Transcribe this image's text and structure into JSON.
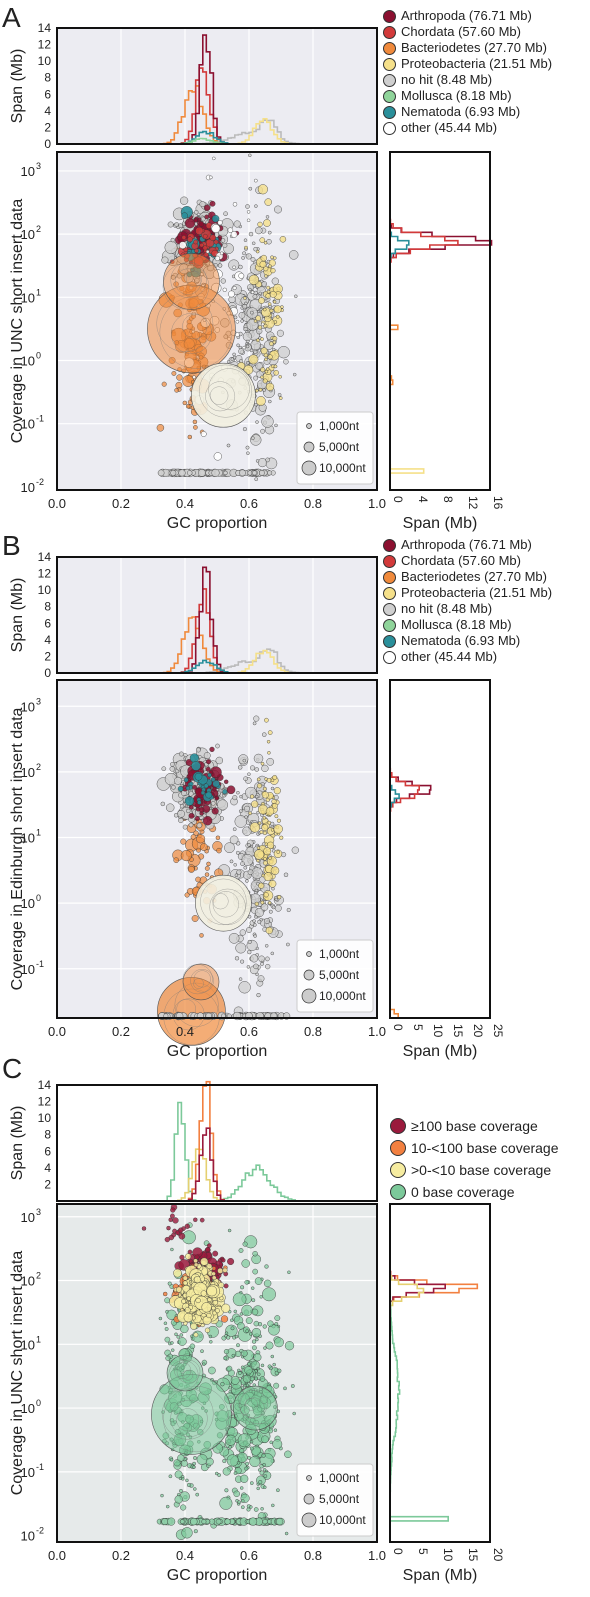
{
  "size_legend": [
    "1,000nt",
    "5,000nt",
    "10,000nt"
  ],
  "colors": {
    "arthropoda": "#8b1030",
    "chordata": "#d23a3a",
    "bacteriodetes": "#f08a3c",
    "proteobacteria": "#f5e08a",
    "nohit": "#cfcfcf",
    "mollusca": "#8fd49a",
    "nematoda": "#2a8f9a",
    "other": "#ffffff",
    "cov100": "#9a1a3c",
    "cov10": "#f28040",
    "cov0to10": "#f6eca0",
    "cov0": "#7cc99a"
  },
  "panels": [
    {
      "letter": "A",
      "top_ylabel": "Span (Mb)",
      "main_ylabel": "Coverage in UNC short insert data",
      "xlabel": "GC proportion",
      "side_xlabel": "Span (Mb)",
      "top_yticks": [
        "0",
        "2",
        "4",
        "6",
        "8",
        "10",
        "12",
        "14"
      ],
      "x_ticks": [
        "0.0",
        "0.2",
        "0.4",
        "0.6",
        "0.8",
        "1.0"
      ],
      "y_ticks": [
        "10-2",
        "10-1",
        "100",
        "101",
        "102",
        "103"
      ],
      "side_ticks": [
        "0",
        "4",
        "8",
        "12",
        "16"
      ],
      "legend": [
        {
          "label": "Arthropoda (76.71 Mb)",
          "color": "#8b1030"
        },
        {
          "label": "Chordata (57.60 Mb)",
          "color": "#d23a3a"
        },
        {
          "label": "Bacteriodetes (27.70 Mb)",
          "color": "#f08a3c"
        },
        {
          "label": "Proteobacteria (21.51 Mb)",
          "color": "#f5e08a"
        },
        {
          "label": "no hit (8.48 Mb)",
          "color": "#cfcfcf"
        },
        {
          "label": "Mollusca (8.18 Mb)",
          "color": "#8fd49a"
        },
        {
          "label": "Nematoda (6.93 Mb)",
          "color": "#2a8f9a"
        },
        {
          "label": "other (45.44 Mb)",
          "color": "#ffffff"
        }
      ]
    },
    {
      "letter": "B",
      "top_ylabel": "Span (Mb)",
      "main_ylabel": "Coverage in Edinburgh short insert data",
      "xlabel": "GC proportion",
      "side_xlabel": "Span (Mb)",
      "top_yticks": [
        "0",
        "2",
        "4",
        "6",
        "8",
        "10",
        "12",
        "14"
      ],
      "x_ticks": [
        "0.0",
        "0.2",
        "0.4",
        "0.6",
        "0.8",
        "1.0"
      ],
      "y_ticks": [
        "10-1",
        "100",
        "101",
        "102",
        "103"
      ],
      "side_ticks": [
        "0",
        "5",
        "10",
        "15",
        "20",
        "25"
      ],
      "legend": [
        {
          "label": "Arthropoda (76.71 Mb)",
          "color": "#8b1030"
        },
        {
          "label": "Chordata (57.60 Mb)",
          "color": "#d23a3a"
        },
        {
          "label": "Bacteriodetes (27.70 Mb)",
          "color": "#f08a3c"
        },
        {
          "label": "Proteobacteria (21.51 Mb)",
          "color": "#f5e08a"
        },
        {
          "label": "no hit (8.48 Mb)",
          "color": "#cfcfcf"
        },
        {
          "label": "Mollusca (8.18 Mb)",
          "color": "#8fd49a"
        },
        {
          "label": "Nematoda (6.93 Mb)",
          "color": "#2a8f9a"
        },
        {
          "label": "other (45.44 Mb)",
          "color": "#ffffff"
        }
      ]
    },
    {
      "letter": "C",
      "top_ylabel": "Span (Mb)",
      "main_ylabel": "Coverage in UNC short insert data",
      "xlabel": "GC proportion",
      "side_xlabel": "Span (Mb)",
      "top_yticks": [
        "2",
        "4",
        "6",
        "8",
        "10",
        "12",
        "14"
      ],
      "x_ticks": [
        "0.0",
        "0.2",
        "0.4",
        "0.6",
        "0.8",
        "1.0"
      ],
      "y_ticks": [
        "10-2",
        "10-1",
        "100",
        "101",
        "102",
        "103"
      ],
      "side_ticks": [
        "0",
        "5",
        "10",
        "15",
        "20"
      ],
      "legend": [
        {
          "label": "≥100 base coverage",
          "color": "#9a1a3c"
        },
        {
          "label": "10-<100 base coverage",
          "color": "#f28040"
        },
        {
          "label": ">0-<10 base coverage",
          "color": "#f6eca0"
        },
        {
          "label": "0 base coverage",
          "color": "#7cc99a"
        }
      ]
    }
  ],
  "chart_data": [
    {
      "type": "scatter",
      "title": "A",
      "xlabel": "GC proportion",
      "ylabel": "Coverage in UNC short insert data",
      "xlim": [
        0.0,
        1.0
      ],
      "ylim": [
        0.01,
        2000
      ],
      "yscale": "log",
      "hist_top_ylabel": "Span (Mb)",
      "hist_top_ylim": [
        0,
        14
      ],
      "hist_side_xlabel": "Span (Mb)",
      "hist_side_xlim": [
        0,
        16
      ],
      "series": [
        {
          "name": "Arthropoda (76.71 Mb)",
          "clusters": [
            {
              "gc": 0.45,
              "cov": 60
            }
          ],
          "hist_peak_gc": 0.46,
          "hist_peak_span": 12.5,
          "hist_side_peak_cov": 70,
          "hist_side_peak_span": 15
        },
        {
          "name": "Chordata (57.60 Mb)",
          "clusters": [
            {
              "gc": 0.44,
              "cov": 60
            }
          ],
          "hist_peak_gc": 0.45,
          "hist_peak_span": 9.5
        },
        {
          "name": "Bacteriodetes (27.70 Mb)",
          "clusters": [
            {
              "gc": 0.4,
              "cov": 1.5
            }
          ],
          "hist_peak_gc": 0.42,
          "hist_peak_span": 7
        },
        {
          "name": "Proteobacteria (21.51 Mb)",
          "clusters": [
            {
              "gc": 0.65,
              "cov": 3
            }
          ],
          "hist_peak_gc": 0.66,
          "hist_peak_span": 2.8
        },
        {
          "name": "no hit (8.48 Mb)",
          "clusters": [
            {
              "gc": 0.43,
              "cov": 60
            },
            {
              "gc": 0.6,
              "cov": 1
            }
          ]
        },
        {
          "name": "Mollusca (8.18 Mb)",
          "clusters": [
            {
              "gc": 0.45,
              "cov": 30
            }
          ]
        },
        {
          "name": "Nematoda (6.93 Mb)",
          "clusters": [
            {
              "gc": 0.46,
              "cov": 50
            }
          ],
          "hist_peak_span": 1.5
        },
        {
          "name": "other (45.44 Mb)",
          "clusters": [
            {
              "gc": 0.52,
              "cov": 0.3
            }
          ]
        }
      ]
    },
    {
      "type": "scatter",
      "title": "B",
      "xlabel": "GC proportion",
      "ylabel": "Coverage in Edinburgh short insert data",
      "xlim": [
        0.0,
        1.0
      ],
      "ylim": [
        0.01,
        3000
      ],
      "yscale": "log",
      "hist_top_ylabel": "Span (Mb)",
      "hist_top_ylim": [
        0,
        14
      ],
      "hist_side_xlabel": "Span (Mb)",
      "hist_side_xlim": [
        0,
        25
      ],
      "series": [
        {
          "name": "Arthropoda (76.71 Mb)",
          "clusters": [
            {
              "gc": 0.45,
              "cov": 50
            }
          ],
          "hist_peak_gc": 0.46,
          "hist_peak_span": 12.5,
          "hist_side_peak_cov": 50,
          "hist_side_peak_span": 11
        },
        {
          "name": "Chordata (57.60 Mb)",
          "clusters": [
            {
              "gc": 0.44,
              "cov": 50
            }
          ],
          "hist_peak_gc": 0.45,
          "hist_peak_span": 9.5
        },
        {
          "name": "Bacteriodetes (27.70 Mb)",
          "clusters": [
            {
              "gc": 0.42,
              "cov": 0.02
            }
          ],
          "hist_peak_gc": 0.42,
          "hist_peak_span": 7
        },
        {
          "name": "Proteobacteria (21.51 Mb)",
          "clusters": [
            {
              "gc": 0.65,
              "cov": 10
            }
          ],
          "hist_peak_span": 2.8
        },
        {
          "name": "no hit (8.48 Mb)",
          "clusters": [
            {
              "gc": 0.43,
              "cov": 50
            }
          ]
        },
        {
          "name": "Mollusca (8.18 Mb)",
          "clusters": [
            {
              "gc": 0.45,
              "cov": 30
            }
          ]
        },
        {
          "name": "Nematoda (6.93 Mb)",
          "clusters": [
            {
              "gc": 0.46,
              "cov": 40
            }
          ]
        },
        {
          "name": "other (45.44 Mb)",
          "clusters": [
            {
              "gc": 0.52,
              "cov": 1
            }
          ]
        }
      ]
    },
    {
      "type": "scatter",
      "title": "C",
      "xlabel": "GC proportion",
      "ylabel": "Coverage in UNC short insert data",
      "xlim": [
        0.0,
        1.0
      ],
      "ylim": [
        0.01,
        2000
      ],
      "yscale": "log",
      "hist_top_ylabel": "Span (Mb)",
      "hist_top_ylim": [
        0,
        14
      ],
      "hist_side_xlabel": "Span (Mb)",
      "hist_side_xlim": [
        0,
        20
      ],
      "series": [
        {
          "name": "≥100 base coverage",
          "clusters": [
            {
              "gc": 0.47,
              "cov": 150
            }
          ],
          "hist_peak_gc": 0.46,
          "hist_peak_span": 8.5
        },
        {
          "name": "10-<100 base coverage",
          "clusters": [
            {
              "gc": 0.44,
              "cov": 60
            }
          ],
          "hist_peak_gc": 0.46,
          "hist_peak_span": 14,
          "hist_side_peak_cov": 70,
          "hist_side_peak_span": 18
        },
        {
          "name": ">0-<10 base coverage",
          "clusters": [
            {
              "gc": 0.45,
              "cov": 50
            }
          ],
          "hist_peak_gc": 0.44,
          "hist_peak_span": 6
        },
        {
          "name": "0 base coverage",
          "clusters": [
            {
              "gc": 0.4,
              "cov": 1
            },
            {
              "gc": 0.6,
              "cov": 1
            }
          ],
          "hist_peak_gc": 0.38,
          "hist_peak_span": 12.5
        }
      ]
    }
  ]
}
